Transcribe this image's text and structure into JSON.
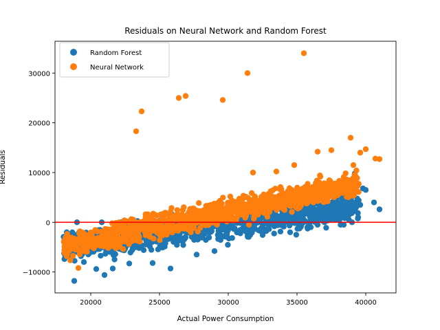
{
  "chart_data": {
    "type": "scatter",
    "title": "Residuals on Neural Network and Random Forest",
    "xlabel": "Actual Power Consumption",
    "ylabel": "Residuals",
    "xlim": [
      17400,
      42200
    ],
    "ylim": [
      -14200,
      36400
    ],
    "xticks": [
      20000,
      25000,
      30000,
      35000,
      40000
    ],
    "yticks": [
      -10000,
      0,
      10000,
      20000,
      30000
    ],
    "xtick_labels": [
      "20000",
      "25000",
      "30000",
      "35000",
      "40000"
    ],
    "ytick_labels": [
      "−10000",
      "0",
      "10000",
      "20000",
      "30000"
    ],
    "grid": false,
    "legend_position": "upper-left",
    "reference_line": {
      "y": 0,
      "color": "#ff0000"
    },
    "series": [
      {
        "name": "Random Forest",
        "color": "#1f77b4",
        "trend": {
          "x_range": [
            18000,
            41000
          ],
          "slope": 0.39,
          "intercept_at_x0": 18000,
          "y_at_x0": -5200,
          "spread": 2600
        },
        "points": [
          [
            18200,
            -6200
          ],
          [
            18800,
            -11800
          ],
          [
            19500,
            -8000
          ],
          [
            20400,
            -9400
          ],
          [
            21000,
            -10600
          ],
          [
            21600,
            -9300
          ],
          [
            22800,
            -8300
          ],
          [
            24500,
            -8200
          ],
          [
            25800,
            -9300
          ],
          [
            27700,
            -6500
          ],
          [
            29000,
            -5800
          ],
          [
            34500,
            -2000
          ],
          [
            36000,
            -1000
          ],
          [
            38400,
            -500
          ],
          [
            39200,
            9800
          ],
          [
            39400,
            4500
          ],
          [
            39800,
            6800
          ],
          [
            40000,
            6500
          ],
          [
            40600,
            4000
          ],
          [
            41000,
            2600
          ],
          [
            39600,
            3500
          ],
          [
            38900,
            1900
          ],
          [
            37500,
            800
          ],
          [
            19000,
            0
          ],
          [
            20800,
            0
          ],
          [
            22200,
            0
          ],
          [
            23800,
            0
          ],
          [
            26000,
            0
          ],
          [
            28500,
            0
          ],
          [
            33000,
            0
          ],
          [
            37000,
            0
          ],
          [
            39000,
            0
          ]
        ]
      },
      {
        "name": "Neural Network",
        "color": "#ff7f0e",
        "trend": {
          "x_range": [
            18000,
            41000
          ],
          "slope": 0.58,
          "intercept_at_x0": 18000,
          "y_at_x0": -4700,
          "spread": 2300
        },
        "points": [
          [
            18100,
            -5600
          ],
          [
            18800,
            -3300
          ],
          [
            19100,
            -9200
          ],
          [
            23300,
            18300
          ],
          [
            23700,
            22300
          ],
          [
            26400,
            25000
          ],
          [
            26900,
            25400
          ],
          [
            29600,
            24600
          ],
          [
            31400,
            30000
          ],
          [
            35500,
            34000
          ],
          [
            38900,
            17000
          ],
          [
            39100,
            11500
          ],
          [
            39600,
            14000
          ],
          [
            40000,
            14700
          ],
          [
            40700,
            12800
          ],
          [
            41000,
            12700
          ],
          [
            37500,
            14500
          ],
          [
            36500,
            14200
          ],
          [
            31800,
            10000
          ],
          [
            33500,
            10200
          ],
          [
            34800,
            11500
          ]
        ]
      }
    ]
  }
}
